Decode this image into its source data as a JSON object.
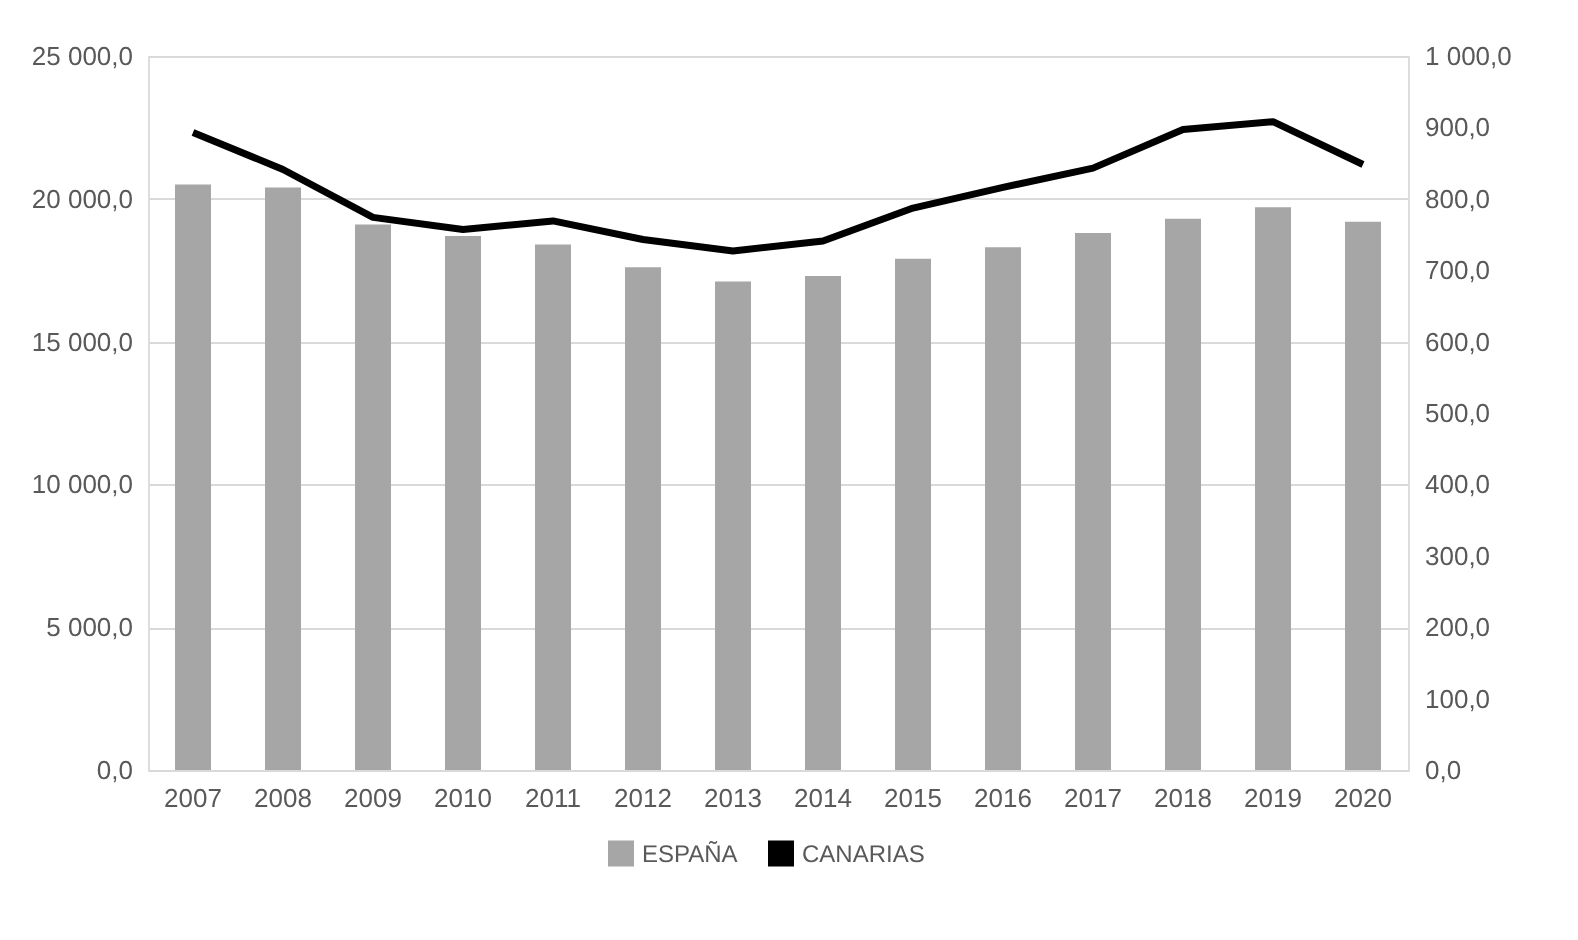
{
  "chart_data": {
    "type": "bar",
    "categories": [
      "2007",
      "2008",
      "2009",
      "2010",
      "2011",
      "2012",
      "2013",
      "2014",
      "2015",
      "2016",
      "2017",
      "2018",
      "2019",
      "2020"
    ],
    "series": [
      {
        "name": "ESPAÑA",
        "color": "#a6a6a6",
        "values": [
          20500,
          20400,
          19100,
          18700,
          18400,
          17600,
          17100,
          17300,
          17900,
          18300,
          18800,
          19300,
          19700,
          19200
        ]
      },
      {
        "name": "CANARIAS",
        "type": "line",
        "axis": "y2",
        "color": "#000000",
        "values": [
          893,
          841,
          774,
          757,
          769,
          743,
          727,
          741,
          787,
          816,
          843,
          897,
          908,
          848
        ]
      }
    ],
    "ylim": [
      0,
      25000
    ],
    "yticks": [
      {
        "value": 0,
        "label": "0,0"
      },
      {
        "value": 5000,
        "label": "5 000,0"
      },
      {
        "value": 10000,
        "label": "10 000,0"
      },
      {
        "value": 15000,
        "label": "15 000,0"
      },
      {
        "value": 20000,
        "label": "20 000,0"
      },
      {
        "value": 25000,
        "label": "25 000,0"
      }
    ],
    "y2lim": [
      0,
      1000
    ],
    "y2ticks": [
      {
        "value": 0,
        "label": "0,0"
      },
      {
        "value": 100,
        "label": "100,0"
      },
      {
        "value": 200,
        "label": "200,0"
      },
      {
        "value": 300,
        "label": "300,0"
      },
      {
        "value": 400,
        "label": "400,0"
      },
      {
        "value": 500,
        "label": "500,0"
      },
      {
        "value": 600,
        "label": "600,0"
      },
      {
        "value": 700,
        "label": "700,0"
      },
      {
        "value": 800,
        "label": "800,0"
      },
      {
        "value": 900,
        "label": "900,0"
      },
      {
        "value": 1000,
        "label": "1 000,0"
      }
    ],
    "grid": "y",
    "legend": "bottom"
  }
}
